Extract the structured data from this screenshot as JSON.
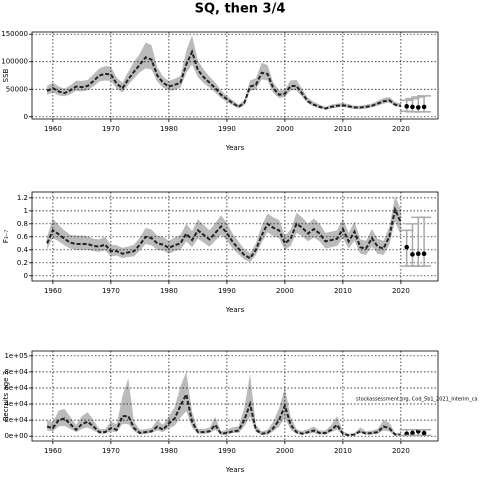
{
  "title": "SQ, then 3/4",
  "chart_data": [
    {
      "type": "line",
      "ylabel": "SSB",
      "xlabel": "Years",
      "grid": true,
      "color": "#222222",
      "band_color": "#bbbbbb",
      "error_color": "#aaaaaa",
      "xlim": [
        1956.4,
        2026.4
      ],
      "xticks": [
        1960,
        1970,
        1980,
        1990,
        2000,
        2010,
        2020
      ],
      "ylim": [
        -4000,
        154000
      ],
      "yticks": [
        0,
        50000,
        100000,
        150000
      ],
      "x": [
        1959,
        1960,
        1961,
        1962,
        1963,
        1964,
        1965,
        1966,
        1967,
        1968,
        1969,
        1970,
        1971,
        1972,
        1973,
        1974,
        1975,
        1976,
        1977,
        1978,
        1979,
        1980,
        1981,
        1982,
        1983,
        1984,
        1985,
        1986,
        1987,
        1988,
        1989,
        1990,
        1991,
        1992,
        1993,
        1994,
        1995,
        1996,
        1997,
        1998,
        1999,
        2000,
        2001,
        2002,
        2003,
        2004,
        2005,
        2006,
        2007,
        2008,
        2009,
        2010,
        2011,
        2012,
        2013,
        2014,
        2015,
        2016,
        2017,
        2018,
        2019,
        2020
      ],
      "values": [
        47000,
        52000,
        46000,
        43000,
        48000,
        55000,
        54000,
        56000,
        65000,
        75000,
        78000,
        77000,
        60000,
        52000,
        68000,
        82000,
        95000,
        108000,
        104000,
        75000,
        62000,
        55000,
        58000,
        62000,
        95000,
        118000,
        85000,
        72000,
        62000,
        52000,
        40000,
        32000,
        25000,
        18000,
        25000,
        55000,
        58000,
        80000,
        78000,
        52000,
        40000,
        42000,
        56000,
        56000,
        42000,
        28000,
        22000,
        18000,
        15000,
        18000,
        20000,
        21000,
        19000,
        17000,
        17000,
        18000,
        20000,
        24000,
        28000,
        30000,
        22000,
        20000
      ],
      "lower": [
        40000,
        44000,
        39000,
        37000,
        41000,
        47000,
        46000,
        48000,
        55000,
        64000,
        66000,
        65000,
        51000,
        44000,
        58000,
        70000,
        81000,
        88000,
        86000,
        64000,
        53000,
        47000,
        49000,
        53000,
        80000,
        95000,
        72000,
        61000,
        53000,
        44000,
        34000,
        27000,
        21000,
        15000,
        21000,
        47000,
        49000,
        68000,
        66000,
        44000,
        34000,
        36000,
        48000,
        48000,
        36000,
        24000,
        19000,
        15000,
        13000,
        15000,
        17000,
        18000,
        16000,
        14000,
        14000,
        15000,
        17000,
        20000,
        24000,
        26000,
        19000,
        17000
      ],
      "upper": [
        56000,
        62000,
        55000,
        51000,
        57000,
        66000,
        65000,
        67000,
        77000,
        88000,
        92000,
        91000,
        71000,
        62000,
        82000,
        100000,
        115000,
        135000,
        130000,
        90000,
        73000,
        65000,
        69000,
        74000,
        120000,
        148000,
        102000,
        86000,
        73000,
        62000,
        48000,
        38000,
        30000,
        22000,
        30000,
        66000,
        70000,
        98000,
        94000,
        62000,
        48000,
        50000,
        66000,
        67000,
        50000,
        34000,
        27000,
        22000,
        18000,
        22000,
        24000,
        25000,
        23000,
        20000,
        20000,
        22000,
        24000,
        29000,
        34000,
        36000,
        27000,
        24000
      ],
      "projection": {
        "x": [
          2021,
          2022,
          2023,
          2024
        ],
        "values": [
          19000,
          18000,
          17000,
          18000
        ],
        "lower": [
          10000,
          9000,
          9000,
          9000
        ],
        "upper": [
          30000,
          33000,
          36000,
          38000
        ]
      }
    },
    {
      "type": "line",
      "ylabel": "F₃₋₇",
      "xlabel": "Years",
      "grid": true,
      "color": "#222222",
      "band_color": "#bbbbbb",
      "error_color": "#aaaaaa",
      "xlim": [
        1956.4,
        2026.4
      ],
      "xticks": [
        1960,
        1970,
        1980,
        1990,
        2000,
        2010,
        2020
      ],
      "ylim": [
        -0.08,
        1.29
      ],
      "yticks": [
        0,
        0.2,
        0.4,
        0.6,
        0.8,
        1,
        1.2
      ],
      "x": [
        1959,
        1960,
        1961,
        1962,
        1963,
        1964,
        1965,
        1966,
        1967,
        1968,
        1969,
        1970,
        1971,
        1972,
        1973,
        1974,
        1975,
        1976,
        1977,
        1978,
        1979,
        1980,
        1981,
        1982,
        1983,
        1984,
        1985,
        1986,
        1987,
        1988,
        1989,
        1990,
        1991,
        1992,
        1993,
        1994,
        1995,
        1996,
        1997,
        1998,
        1999,
        2000,
        2001,
        2002,
        2003,
        2004,
        2005,
        2006,
        2007,
        2008,
        2009,
        2010,
        2011,
        2012,
        2013,
        2014,
        2015,
        2016,
        2017,
        2018,
        2019,
        2020
      ],
      "values": [
        0.5,
        0.7,
        0.64,
        0.57,
        0.51,
        0.49,
        0.49,
        0.49,
        0.46,
        0.45,
        0.48,
        0.38,
        0.38,
        0.34,
        0.36,
        0.38,
        0.48,
        0.6,
        0.58,
        0.5,
        0.48,
        0.43,
        0.47,
        0.5,
        0.65,
        0.55,
        0.7,
        0.63,
        0.56,
        0.66,
        0.76,
        0.66,
        0.52,
        0.42,
        0.32,
        0.27,
        0.4,
        0.62,
        0.8,
        0.74,
        0.7,
        0.5,
        0.57,
        0.8,
        0.74,
        0.65,
        0.72,
        0.65,
        0.53,
        0.55,
        0.57,
        0.72,
        0.53,
        0.68,
        0.44,
        0.42,
        0.58,
        0.45,
        0.42,
        0.6,
        1.02,
        0.82
      ],
      "lower": [
        0.41,
        0.58,
        0.53,
        0.47,
        0.42,
        0.4,
        0.4,
        0.4,
        0.38,
        0.37,
        0.39,
        0.3,
        0.31,
        0.27,
        0.29,
        0.3,
        0.39,
        0.49,
        0.47,
        0.4,
        0.39,
        0.34,
        0.38,
        0.4,
        0.53,
        0.44,
        0.57,
        0.51,
        0.45,
        0.54,
        0.63,
        0.54,
        0.42,
        0.33,
        0.25,
        0.21,
        0.32,
        0.51,
        0.67,
        0.61,
        0.58,
        0.4,
        0.46,
        0.66,
        0.61,
        0.53,
        0.59,
        0.53,
        0.42,
        0.44,
        0.46,
        0.58,
        0.42,
        0.54,
        0.34,
        0.32,
        0.45,
        0.34,
        0.32,
        0.47,
        0.84,
        0.62
      ],
      "upper": [
        0.6,
        0.88,
        0.78,
        0.7,
        0.63,
        0.62,
        0.62,
        0.61,
        0.57,
        0.56,
        0.6,
        0.48,
        0.47,
        0.43,
        0.45,
        0.48,
        0.59,
        0.74,
        0.71,
        0.62,
        0.6,
        0.54,
        0.59,
        0.63,
        0.8,
        0.69,
        0.87,
        0.78,
        0.7,
        0.81,
        0.93,
        0.81,
        0.65,
        0.53,
        0.41,
        0.35,
        0.5,
        0.77,
        0.96,
        0.9,
        0.86,
        0.62,
        0.71,
        0.97,
        0.9,
        0.8,
        0.88,
        0.8,
        0.66,
        0.68,
        0.7,
        0.88,
        0.66,
        0.84,
        0.56,
        0.54,
        0.72,
        0.57,
        0.54,
        0.75,
        1.22,
        1.02
      ],
      "projection": {
        "x": [
          2021,
          2022,
          2023,
          2024
        ],
        "values": [
          0.44,
          0.33,
          0.34,
          0.34
        ],
        "lower": [
          0.15,
          0.15,
          0.15,
          0.15
        ],
        "upper": [
          0.7,
          0.8,
          0.9,
          0.9
        ]
      }
    },
    {
      "type": "line",
      "ylabel": "Recruits age 3",
      "xlabel": "Years",
      "grid": true,
      "color": "#222222",
      "band_color": "#bbbbbb",
      "error_color": "#aaaaaa",
      "annotation": "stockassessment.org, Cod_5b1_2021_Interim_ca",
      "xlim": [
        1956.4,
        2026.4
      ],
      "xticks": [
        1960,
        1970,
        1980,
        1990,
        2000,
        2010,
        2020
      ],
      "ylim": [
        -6000,
        106000
      ],
      "yticks": [
        {
          "value": 0,
          "label": "0e+00"
        },
        {
          "value": 20000,
          "label": "2e+04"
        },
        {
          "value": 40000,
          "label": "4e+04"
        },
        {
          "value": 60000,
          "label": "6e+04"
        },
        {
          "value": 80000,
          "label": "8e+04"
        },
        {
          "value": 100000,
          "label": "1e+05"
        }
      ],
      "x": [
        1959,
        1960,
        1961,
        1962,
        1963,
        1964,
        1965,
        1966,
        1967,
        1968,
        1969,
        1970,
        1971,
        1972,
        1973,
        1974,
        1975,
        1976,
        1977,
        1978,
        1979,
        1980,
        1981,
        1982,
        1983,
        1984,
        1985,
        1986,
        1987,
        1988,
        1989,
        1990,
        1991,
        1992,
        1993,
        1994,
        1995,
        1996,
        1997,
        1998,
        1999,
        2000,
        2001,
        2002,
        2003,
        2004,
        2005,
        2006,
        2007,
        2008,
        2009,
        2010,
        2011,
        2012,
        2013,
        2014,
        2015,
        2016,
        2017,
        2018,
        2019,
        2020
      ],
      "values": [
        12000,
        10000,
        20000,
        22000,
        15000,
        8000,
        15000,
        18000,
        12000,
        5000,
        5000,
        10000,
        8000,
        25000,
        25000,
        10000,
        4000,
        5000,
        6000,
        12000,
        8000,
        16000,
        22000,
        38000,
        52000,
        18000,
        5000,
        5000,
        6000,
        14000,
        3000,
        4000,
        6000,
        7000,
        20000,
        40000,
        8000,
        3000,
        4000,
        10000,
        20000,
        38000,
        14000,
        5000,
        3000,
        5000,
        7000,
        4000,
        4000,
        8000,
        14000,
        3000,
        1000,
        2000,
        6000,
        3000,
        4000,
        5000,
        12000,
        10000,
        2000,
        2000
      ],
      "lower": [
        7000,
        6000,
        12000,
        13000,
        9000,
        5000,
        9000,
        11000,
        7000,
        3000,
        3000,
        6000,
        5000,
        15000,
        15000,
        6000,
        2000,
        3000,
        4000,
        7000,
        5000,
        10000,
        13000,
        23000,
        31000,
        11000,
        3000,
        3000,
        4000,
        8000,
        2000,
        2000,
        4000,
        4000,
        12000,
        24000,
        5000,
        2000,
        2000,
        6000,
        12000,
        23000,
        8000,
        3000,
        2000,
        3000,
        4000,
        2000,
        2000,
        5000,
        8000,
        2000,
        1000,
        1000,
        4000,
        2000,
        2000,
        3000,
        7000,
        6000,
        1000,
        1000
      ],
      "upper": [
        20000,
        17000,
        32000,
        34000,
        24000,
        14000,
        25000,
        30000,
        20000,
        9000,
        9000,
        18000,
        15000,
        50000,
        72000,
        18000,
        8000,
        9000,
        10000,
        20000,
        14000,
        25000,
        36000,
        62000,
        80000,
        30000,
        9000,
        9000,
        11000,
        24000,
        6000,
        8000,
        11000,
        12000,
        35000,
        77000,
        14000,
        6000,
        8000,
        18000,
        35000,
        60000,
        24000,
        9000,
        6000,
        9000,
        12000,
        7000,
        7000,
        14000,
        25000,
        6000,
        3000,
        4000,
        11000,
        6000,
        7000,
        9000,
        20000,
        17000,
        4000,
        4000
      ],
      "projection": {
        "x": [
          2021,
          2022,
          2023,
          2024
        ],
        "values": [
          3000,
          4000,
          6000,
          4000
        ],
        "lower": [
          1000,
          1000,
          1000,
          1000
        ],
        "upper": [
          8000,
          8000,
          8000,
          8000
        ]
      }
    }
  ]
}
